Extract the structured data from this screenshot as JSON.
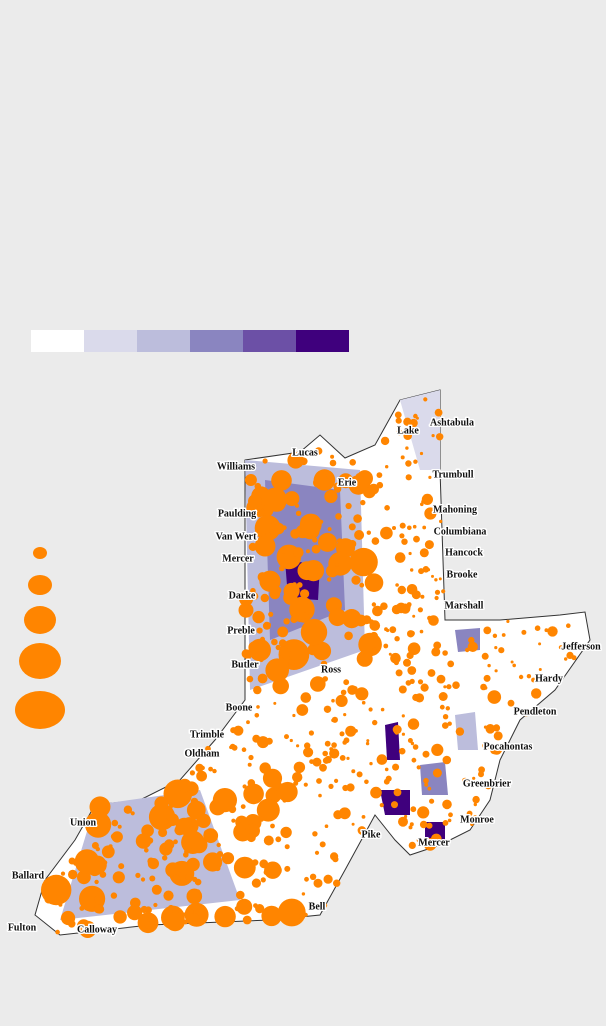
{
  "legend": {
    "colors": [
      "#ffffff",
      "#dadaeb",
      "#bcbddc",
      "#8a85c0",
      "#6c50a6",
      "#3f007d"
    ]
  },
  "point_color": "#ff8500",
  "labels": [
    "Ashtabula",
    "Lake",
    "Lucas",
    "Williams",
    "Trumbull",
    "Erie",
    "Mahoning",
    "Paulding",
    "Columbiana",
    "Van Wert",
    "Hancock",
    "Mercer",
    "Brooke",
    "Darke",
    "Marshall",
    "Preble",
    "Jefferson",
    "Butler",
    "Ross",
    "Hardy",
    "Boone",
    "Pendleton",
    "Trimble",
    "Oldham",
    "Pocahontas",
    "Greenbrier",
    "Monroe",
    "Union",
    "Pike",
    "Mercer",
    "Ballard",
    "Bell",
    "Fulton",
    "Calloway"
  ]
}
